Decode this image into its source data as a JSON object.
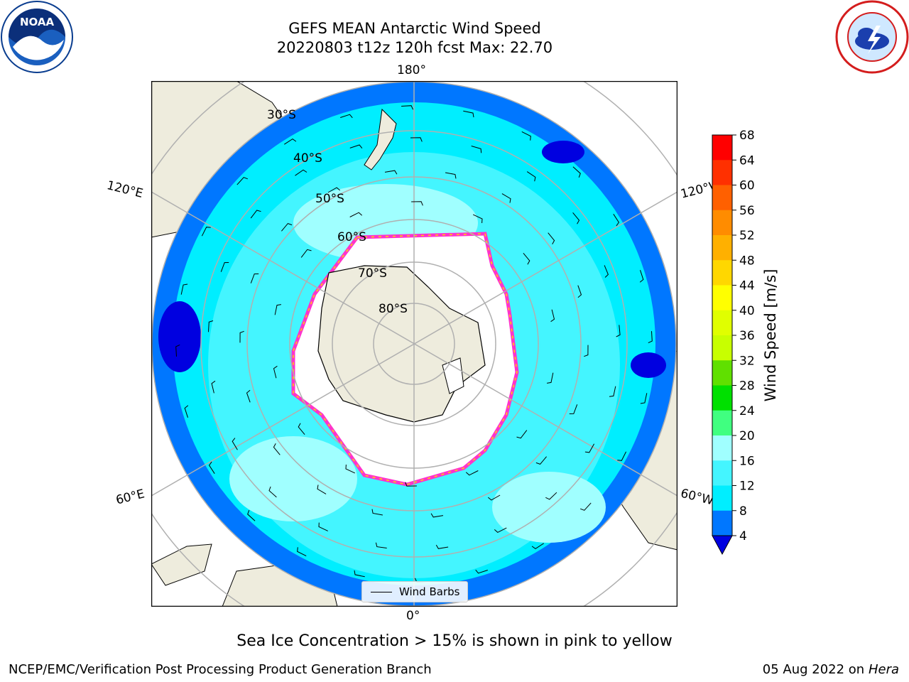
{
  "title": {
    "line1": "GEFS MEAN Antarctic Wind Speed",
    "line2": "20220803 t12z 120h fcst   Max: 22.70"
  },
  "logos": {
    "left": "noaa-logo",
    "right": "national-weather-service-logo"
  },
  "map": {
    "projection": "south-polar-stereographic",
    "longitude_labels": {
      "top": "180°",
      "bottom": "0°",
      "upper_left": "120°E",
      "upper_right": "120°W",
      "lower_left": "60°E",
      "lower_right": "60°W"
    },
    "latitude_labels": [
      "30°S",
      "40°S",
      "50°S",
      "60°S",
      "70°S",
      "80°S"
    ],
    "legend_label": "Wind Barbs"
  },
  "colorbar": {
    "label": "Wind Speed [m/s]",
    "ticks": [
      "4",
      "8",
      "12",
      "16",
      "20",
      "24",
      "28",
      "32",
      "36",
      "40",
      "44",
      "48",
      "52",
      "56",
      "60",
      "64",
      "68"
    ],
    "colors": [
      "#0000e0",
      "#0077ff",
      "#00eeff",
      "#44f5ff",
      "#a0ffff",
      "#40ff80",
      "#00e000",
      "#60e000",
      "#c8ff00",
      "#e0ff00",
      "#ffff00",
      "#ffd700",
      "#ffb000",
      "#ff8c00",
      "#ff6000",
      "#ff3000",
      "#ff0000"
    ]
  },
  "footer": {
    "caption": "Sea Ice Concentration > 15% is shown in pink to yellow",
    "left": "NCEP/EMC/Verification Post Processing Product Generation Branch",
    "date": "05 Aug 2022 on",
    "machine": "Hera"
  }
}
